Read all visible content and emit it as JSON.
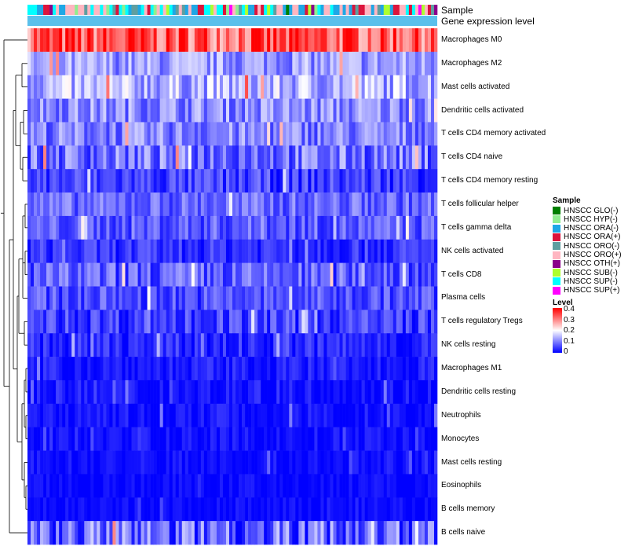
{
  "chart_data": {
    "type": "heatmap",
    "title": "",
    "annotation_labels": {
      "sample": "Sample",
      "gene_expression": "Gene expression level"
    },
    "rows": [
      {
        "label": "Macrophages M0",
        "mean": 0.33,
        "spread": 0.09
      },
      {
        "label": "Macrophages M2",
        "mean": 0.12,
        "spread": 0.06
      },
      {
        "label": "Mast cells activated",
        "mean": 0.14,
        "spread": 0.07
      },
      {
        "label": "Dendritic cells activated",
        "mean": 0.11,
        "spread": 0.06
      },
      {
        "label": "T cells CD4 memory activated",
        "mean": 0.1,
        "spread": 0.06
      },
      {
        "label": "T cells CD4 naive",
        "mean": 0.09,
        "spread": 0.07
      },
      {
        "label": "T cells CD4 memory resting",
        "mean": 0.05,
        "spread": 0.05
      },
      {
        "label": "T cells follicular helper",
        "mean": 0.08,
        "spread": 0.05
      },
      {
        "label": "T cells gamma delta",
        "mean": 0.07,
        "spread": 0.05
      },
      {
        "label": "NK cells activated",
        "mean": 0.04,
        "spread": 0.04
      },
      {
        "label": "T cells CD8",
        "mean": 0.07,
        "spread": 0.06
      },
      {
        "label": "Plasma cells",
        "mean": 0.06,
        "spread": 0.05
      },
      {
        "label": "T cells regulatory  Tregs",
        "mean": 0.05,
        "spread": 0.05
      },
      {
        "label": "NK cells resting",
        "mean": 0.03,
        "spread": 0.04
      },
      {
        "label": "Macrophages M1",
        "mean": 0.02,
        "spread": 0.03
      },
      {
        "label": "Dendritic cells resting",
        "mean": 0.015,
        "spread": 0.03
      },
      {
        "label": "Neutrophils",
        "mean": 0.01,
        "spread": 0.03
      },
      {
        "label": "Monocytes",
        "mean": 0.01,
        "spread": 0.025
      },
      {
        "label": "Mast cells resting",
        "mean": 0.01,
        "spread": 0.025
      },
      {
        "label": "Eosinophils",
        "mean": 0.005,
        "spread": 0.02
      },
      {
        "label": "B cells memory",
        "mean": 0.005,
        "spread": 0.02
      },
      {
        "label": "B cells naive",
        "mean": 0.08,
        "spread": 0.09
      }
    ],
    "n_samples": 130,
    "sample_legend": {
      "title": "Sample",
      "items": [
        {
          "label": "HNSCC GLO(-)",
          "color": "#007F00"
        },
        {
          "label": "HNSCC HYP(-)",
          "color": "#90EE90"
        },
        {
          "label": "HNSCC ORA(-)",
          "color": "#1EA7E6"
        },
        {
          "label": "HNSCC ORA(+)",
          "color": "#DC143C"
        },
        {
          "label": "HNSCC ORO(-)",
          "color": "#5F9EA0"
        },
        {
          "label": "HNSCC ORO(+)",
          "color": "#FFB6C1"
        },
        {
          "label": "HNSCC OTH(+)",
          "color": "#8B008B"
        },
        {
          "label": "HNSCC SUB(-)",
          "color": "#ADFF2F"
        },
        {
          "label": "HNSCC SUP(-)",
          "color": "#00FFFF"
        },
        {
          "label": "HNSCC SUP(+)",
          "color": "#FF00FF"
        }
      ]
    },
    "level_legend": {
      "title": "Level",
      "ticks": [
        "0.4",
        "0.3",
        "0.2",
        "0.1",
        "0"
      ],
      "min": 0,
      "max": 0.4,
      "colors": [
        "#0000FF",
        "#FFFFFF",
        "#FF0000"
      ]
    },
    "gene_expression_color": "#5BC0EB"
  }
}
